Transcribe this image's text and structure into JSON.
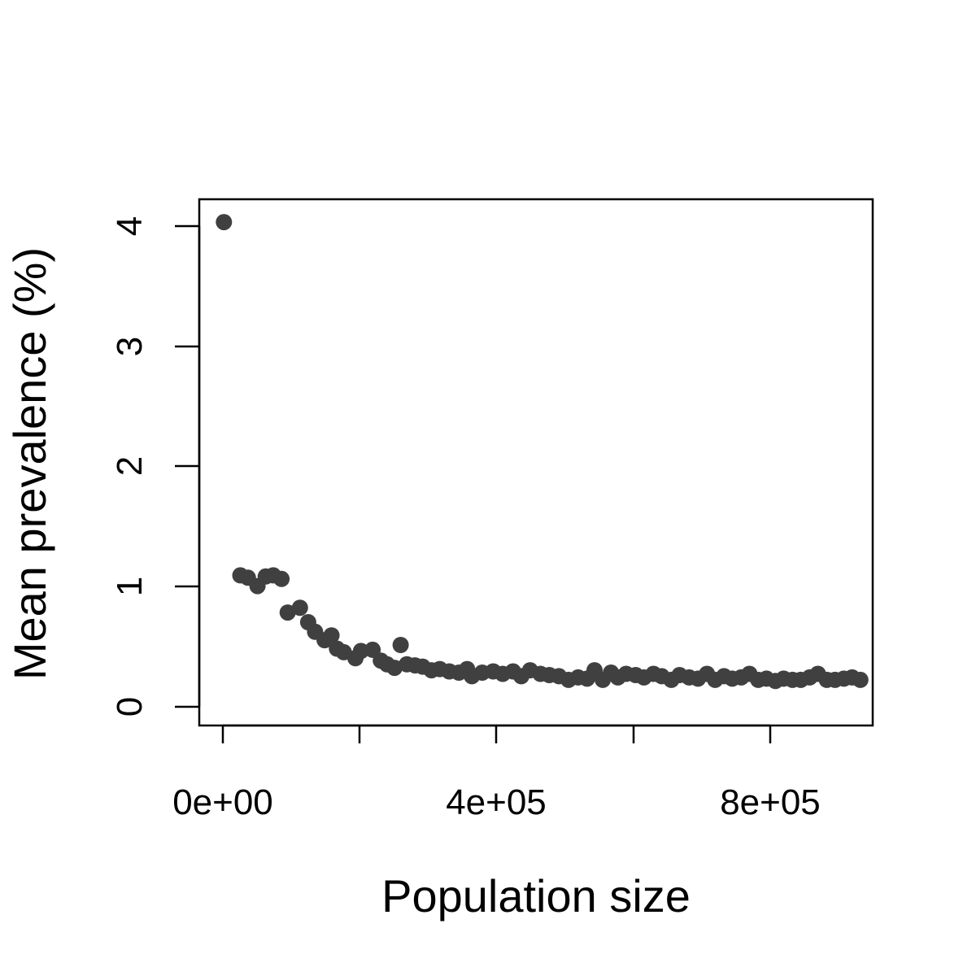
{
  "chart_data": {
    "type": "scatter",
    "title": "",
    "xlabel": "Population size",
    "ylabel": "Mean prevalence (%)",
    "xlim": [
      -33000,
      950000
    ],
    "ylim": [
      -0.16,
      4.22
    ],
    "x_ticks": [
      0,
      200000,
      400000,
      600000,
      800000
    ],
    "x_tick_labels": [
      "0e+00",
      "",
      "4e+05",
      "",
      "8e+05"
    ],
    "y_ticks": [
      0,
      1,
      2,
      3,
      4
    ],
    "y_tick_labels": [
      "0",
      "1",
      "2",
      "3",
      "4"
    ],
    "grid": false,
    "legend": "none",
    "point_color": "#404040",
    "series": [
      {
        "x": [
          3000,
          27000,
          38000,
          52000,
          64000,
          75000,
          87000,
          96000,
          114000,
          126000,
          136000,
          150000,
          160000,
          168000,
          178000,
          195000,
          203000,
          220000,
          232000,
          241000,
          252000,
          261000,
          270000,
          282000,
          293000,
          306000,
          318000,
          332000,
          346000,
          358000,
          365000,
          380000,
          396000,
          410000,
          425000,
          437000,
          450000,
          465000,
          478000,
          492000,
          506000,
          520000,
          533000,
          544000,
          556000,
          568000,
          578000,
          590000,
          604000,
          616000,
          630000,
          642000,
          656000,
          668000,
          682000,
          695000,
          708000,
          720000,
          733000,
          745000,
          758000,
          770000,
          783000,
          795000,
          808000,
          820000,
          833000,
          845000,
          858000,
          870000,
          883000,
          895000,
          908000,
          920000,
          932000
        ],
        "y": [
          4.03,
          1.09,
          1.07,
          1.0,
          1.08,
          1.09,
          1.06,
          0.78,
          0.82,
          0.7,
          0.62,
          0.55,
          0.59,
          0.48,
          0.45,
          0.4,
          0.46,
          0.47,
          0.38,
          0.35,
          0.32,
          0.51,
          0.35,
          0.34,
          0.33,
          0.3,
          0.31,
          0.29,
          0.28,
          0.31,
          0.25,
          0.28,
          0.29,
          0.27,
          0.29,
          0.25,
          0.3,
          0.27,
          0.26,
          0.25,
          0.22,
          0.24,
          0.23,
          0.3,
          0.22,
          0.28,
          0.24,
          0.27,
          0.26,
          0.24,
          0.27,
          0.25,
          0.22,
          0.26,
          0.24,
          0.23,
          0.27,
          0.22,
          0.25,
          0.23,
          0.24,
          0.27,
          0.22,
          0.23,
          0.21,
          0.23,
          0.22,
          0.22,
          0.24,
          0.27,
          0.22,
          0.22,
          0.23,
          0.24,
          0.22
        ]
      }
    ]
  }
}
